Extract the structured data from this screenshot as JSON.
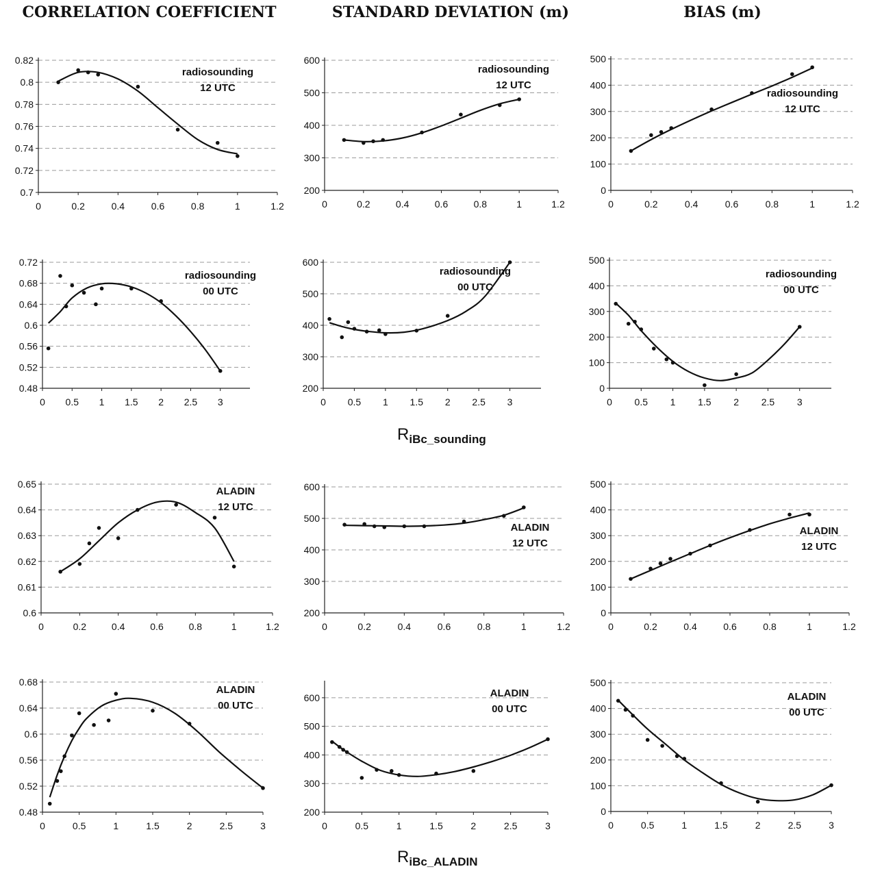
{
  "column_titles": [
    "CORRELATION COEFFICIENT",
    "STANDARD DEVIATION (m)",
    "BIAS (m)"
  ],
  "row_labels": [
    {
      "main": "R",
      "sub": "iBc_sounding"
    },
    {
      "main": "R",
      "sub": "iBc_ALADIN"
    }
  ],
  "chart_data": [
    {
      "type": "scatter",
      "ann": [
        "radiosounding",
        "12 UTC"
      ],
      "ylim": [
        0.7,
        0.82
      ],
      "yticks": [
        "0.7",
        "0.72",
        "0.74",
        "0.76",
        "0.78",
        "0.8",
        "0.82"
      ],
      "xlim": [
        0,
        1.2
      ],
      "xticks": [
        "0",
        "0.2",
        "0.4",
        "0.6",
        "0.8",
        "1",
        "1.2"
      ],
      "points": [
        [
          0.1,
          0.8
        ],
        [
          0.2,
          0.811
        ],
        [
          0.25,
          0.809
        ],
        [
          0.3,
          0.807
        ],
        [
          0.5,
          0.796
        ],
        [
          0.7,
          0.757
        ],
        [
          0.9,
          0.745
        ],
        [
          1.0,
          0.733
        ]
      ],
      "fit": [
        [
          0.1,
          0.801
        ],
        [
          0.2,
          0.809
        ],
        [
          0.3,
          0.809
        ],
        [
          0.4,
          0.803
        ],
        [
          0.5,
          0.792
        ],
        [
          0.6,
          0.777
        ],
        [
          0.7,
          0.762
        ],
        [
          0.8,
          0.748
        ],
        [
          0.9,
          0.739
        ],
        [
          1.0,
          0.735
        ]
      ]
    },
    {
      "type": "scatter",
      "ann": [
        "radiosounding",
        "12 UTC"
      ],
      "ylim": [
        200,
        600
      ],
      "yticks": [
        "200",
        "300",
        "400",
        "500",
        "600"
      ],
      "xlim": [
        0,
        1.2
      ],
      "xticks": [
        "0",
        "0.2",
        "0.4",
        "0.6",
        "0.8",
        "1",
        "1.2"
      ],
      "points": [
        [
          0.1,
          355
        ],
        [
          0.2,
          346
        ],
        [
          0.25,
          351
        ],
        [
          0.3,
          355
        ],
        [
          0.5,
          378
        ],
        [
          0.7,
          433
        ],
        [
          0.9,
          462
        ],
        [
          1.0,
          480
        ]
      ],
      "fit": [
        [
          0.1,
          355
        ],
        [
          0.2,
          350
        ],
        [
          0.3,
          352
        ],
        [
          0.4,
          361
        ],
        [
          0.5,
          377
        ],
        [
          0.6,
          398
        ],
        [
          0.7,
          422
        ],
        [
          0.8,
          446
        ],
        [
          0.9,
          466
        ],
        [
          1.0,
          480
        ]
      ]
    },
    {
      "type": "scatter",
      "ann": [
        "radiosounding",
        "12 UTC"
      ],
      "ylim": [
        0,
        500
      ],
      "yticks": [
        "0",
        "100",
        "200",
        "300",
        "400",
        "500"
      ],
      "xlim": [
        0,
        1.2
      ],
      "xticks": [
        "0",
        "0.2",
        "0.4",
        "0.6",
        "0.8",
        "1",
        "1.2"
      ],
      "points": [
        [
          0.1,
          150
        ],
        [
          0.2,
          210
        ],
        [
          0.25,
          222
        ],
        [
          0.3,
          237
        ],
        [
          0.5,
          308
        ],
        [
          0.7,
          370
        ],
        [
          0.9,
          442
        ],
        [
          1.0,
          468
        ]
      ],
      "fit": [
        [
          0.1,
          150
        ],
        [
          0.2,
          193
        ],
        [
          0.3,
          232
        ],
        [
          0.4,
          268
        ],
        [
          0.5,
          302
        ],
        [
          0.6,
          334
        ],
        [
          0.7,
          366
        ],
        [
          0.8,
          397
        ],
        [
          0.9,
          430
        ],
        [
          1.0,
          465
        ]
      ]
    },
    {
      "type": "scatter",
      "ann": [
        "radiosounding",
        "00 UTC"
      ],
      "ylim": [
        0.48,
        0.72
      ],
      "yticks": [
        "0.48",
        "0.52",
        "0.56",
        "0.6",
        "0.64",
        "0.68",
        "0.72"
      ],
      "xlim": [
        0,
        3.5
      ],
      "xticks": [
        "0",
        "0.5",
        "1",
        "1.5",
        "2",
        "2.5",
        "3"
      ],
      "points": [
        [
          0.1,
          0.556
        ],
        [
          0.3,
          0.694
        ],
        [
          0.4,
          0.636
        ],
        [
          0.5,
          0.676
        ],
        [
          0.7,
          0.662
        ],
        [
          0.9,
          0.64
        ],
        [
          1.0,
          0.67
        ],
        [
          1.5,
          0.67
        ],
        [
          2.0,
          0.646
        ],
        [
          3.0,
          0.513
        ]
      ],
      "fit": [
        [
          0.1,
          0.604
        ],
        [
          0.3,
          0.626
        ],
        [
          0.5,
          0.652
        ],
        [
          0.75,
          0.671
        ],
        [
          1.0,
          0.679
        ],
        [
          1.25,
          0.679
        ],
        [
          1.5,
          0.673
        ],
        [
          1.75,
          0.661
        ],
        [
          2.0,
          0.643
        ],
        [
          2.25,
          0.618
        ],
        [
          2.5,
          0.588
        ],
        [
          2.75,
          0.553
        ],
        [
          3.0,
          0.513
        ]
      ]
    },
    {
      "type": "scatter",
      "ann": [
        "radiosounding",
        "00 UTC"
      ],
      "ylim": [
        200,
        600
      ],
      "yticks": [
        "200",
        "300",
        "400",
        "500",
        "600"
      ],
      "xlim": [
        0,
        3.5
      ],
      "xticks": [
        "0",
        "0.5",
        "1",
        "1.5",
        "2",
        "2.5",
        "3"
      ],
      "points": [
        [
          0.1,
          420
        ],
        [
          0.3,
          362
        ],
        [
          0.4,
          410
        ],
        [
          0.5,
          389
        ],
        [
          0.7,
          380
        ],
        [
          0.9,
          384
        ],
        [
          1.0,
          372
        ],
        [
          1.5,
          383
        ],
        [
          2.0,
          430
        ],
        [
          3.0,
          600
        ]
      ],
      "fit": [
        [
          0.1,
          408
        ],
        [
          0.3,
          396
        ],
        [
          0.5,
          387
        ],
        [
          0.7,
          381
        ],
        [
          1.0,
          376
        ],
        [
          1.3,
          378
        ],
        [
          1.6,
          389
        ],
        [
          2.0,
          415
        ],
        [
          2.3,
          445
        ],
        [
          2.6,
          492
        ],
        [
          3.0,
          600
        ]
      ]
    },
    {
      "type": "scatter",
      "ann": [
        "radiosounding",
        "00 UTC"
      ],
      "ylim": [
        0,
        500
      ],
      "yticks": [
        "0",
        "100",
        "200",
        "300",
        "400",
        "500"
      ],
      "xlim": [
        0,
        3.5
      ],
      "xticks": [
        "0",
        "0.5",
        "1",
        "1.5",
        "2",
        "2.5",
        "3"
      ],
      "points": [
        [
          0.1,
          330
        ],
        [
          0.3,
          252
        ],
        [
          0.4,
          260
        ],
        [
          0.5,
          230
        ],
        [
          0.7,
          155
        ],
        [
          0.9,
          113
        ],
        [
          1.0,
          100
        ],
        [
          1.5,
          12
        ],
        [
          2.0,
          55
        ],
        [
          3.0,
          240
        ]
      ],
      "fit": [
        [
          0.1,
          332
        ],
        [
          0.3,
          285
        ],
        [
          0.5,
          225
        ],
        [
          0.75,
          160
        ],
        [
          1.0,
          105
        ],
        [
          1.25,
          65
        ],
        [
          1.5,
          40
        ],
        [
          1.75,
          30
        ],
        [
          2.0,
          40
        ],
        [
          2.25,
          60
        ],
        [
          2.5,
          110
        ],
        [
          2.75,
          170
        ],
        [
          3.0,
          240
        ]
      ]
    },
    {
      "type": "scatter",
      "ann": [
        "ALADIN",
        "12 UTC"
      ],
      "ylim": [
        0.6,
        0.65
      ],
      "yticks": [
        "0.6",
        "0.61",
        "0.62",
        "0.63",
        "0.64",
        "0.65"
      ],
      "xlim": [
        0,
        1.2
      ],
      "xticks": [
        "0",
        "0.2",
        "0.4",
        "0.6",
        "0.8",
        "1",
        "1.2"
      ],
      "points": [
        [
          0.1,
          0.616
        ],
        [
          0.2,
          0.619
        ],
        [
          0.25,
          0.627
        ],
        [
          0.3,
          0.633
        ],
        [
          0.4,
          0.629
        ],
        [
          0.5,
          0.64
        ],
        [
          0.7,
          0.642
        ],
        [
          0.9,
          0.637
        ],
        [
          1.0,
          0.618
        ]
      ],
      "fit": [
        [
          0.1,
          0.616
        ],
        [
          0.2,
          0.621
        ],
        [
          0.3,
          0.628
        ],
        [
          0.4,
          0.635
        ],
        [
          0.5,
          0.64
        ],
        [
          0.6,
          0.643
        ],
        [
          0.7,
          0.643
        ],
        [
          0.8,
          0.639
        ],
        [
          0.9,
          0.633
        ],
        [
          1.0,
          0.62
        ]
      ]
    },
    {
      "type": "scatter",
      "ann": [
        "ALADIN",
        "12 UTC"
      ],
      "ylim": [
        200,
        600
      ],
      "yticks": [
        "200",
        "300",
        "400",
        "500",
        "600"
      ],
      "xlim": [
        0,
        1.2
      ],
      "xticks": [
        "0",
        "0.2",
        "0.4",
        "0.6",
        "0.8",
        "1",
        "1.2"
      ],
      "points": [
        [
          0.1,
          480
        ],
        [
          0.2,
          482
        ],
        [
          0.25,
          475
        ],
        [
          0.3,
          472
        ],
        [
          0.4,
          475
        ],
        [
          0.5,
          475
        ],
        [
          0.7,
          490
        ],
        [
          0.9,
          508
        ],
        [
          1.0,
          535
        ]
      ],
      "fit": [
        [
          0.1,
          478
        ],
        [
          0.2,
          477
        ],
        [
          0.3,
          476
        ],
        [
          0.4,
          475
        ],
        [
          0.5,
          476
        ],
        [
          0.6,
          479
        ],
        [
          0.7,
          485
        ],
        [
          0.8,
          496
        ],
        [
          0.9,
          510
        ],
        [
          1.0,
          533
        ]
      ]
    },
    {
      "type": "scatter",
      "ann": [
        "ALADIN",
        "12 UTC"
      ],
      "ylim": [
        0,
        500
      ],
      "yticks": [
        "0",
        "100",
        "200",
        "300",
        "400",
        "500"
      ],
      "xlim": [
        0,
        1.2
      ],
      "xticks": [
        "0",
        "0.2",
        "0.4",
        "0.6",
        "0.8",
        "1",
        "1.2"
      ],
      "points": [
        [
          0.1,
          132
        ],
        [
          0.2,
          172
        ],
        [
          0.25,
          192
        ],
        [
          0.3,
          210
        ],
        [
          0.4,
          230
        ],
        [
          0.5,
          262
        ],
        [
          0.7,
          322
        ],
        [
          0.9,
          382
        ],
        [
          1.0,
          382
        ]
      ],
      "fit": [
        [
          0.1,
          132
        ],
        [
          0.2,
          165
        ],
        [
          0.3,
          198
        ],
        [
          0.4,
          230
        ],
        [
          0.5,
          262
        ],
        [
          0.6,
          292
        ],
        [
          0.7,
          320
        ],
        [
          0.8,
          346
        ],
        [
          0.9,
          368
        ],
        [
          1.0,
          388
        ]
      ]
    },
    {
      "type": "scatter",
      "ann": [
        "ALADIN",
        "00 UTC"
      ],
      "ylim": [
        0.48,
        0.68
      ],
      "yticks": [
        "0.48",
        "0.52",
        "0.56",
        "0.6",
        "0.64",
        "0.68"
      ],
      "xlim": [
        0,
        3.0
      ],
      "xticks": [
        "0",
        "0.5",
        "1",
        "1.5",
        "2",
        "2.5",
        "3"
      ],
      "points": [
        [
          0.1,
          0.493
        ],
        [
          0.2,
          0.528
        ],
        [
          0.25,
          0.543
        ],
        [
          0.3,
          0.566
        ],
        [
          0.4,
          0.598
        ],
        [
          0.5,
          0.632
        ],
        [
          0.7,
          0.614
        ],
        [
          0.9,
          0.621
        ],
        [
          1.0,
          0.662
        ],
        [
          1.5,
          0.636
        ],
        [
          2.0,
          0.616
        ],
        [
          3.0,
          0.517
        ]
      ],
      "fit": [
        [
          0.1,
          0.503
        ],
        [
          0.2,
          0.537
        ],
        [
          0.3,
          0.566
        ],
        [
          0.4,
          0.59
        ],
        [
          0.5,
          0.609
        ],
        [
          0.6,
          0.624
        ],
        [
          0.8,
          0.643
        ],
        [
          1.0,
          0.652
        ],
        [
          1.2,
          0.655
        ],
        [
          1.5,
          0.649
        ],
        [
          1.8,
          0.632
        ],
        [
          2.1,
          0.605
        ],
        [
          2.4,
          0.573
        ],
        [
          2.7,
          0.544
        ],
        [
          3.0,
          0.517
        ]
      ]
    },
    {
      "type": "scatter",
      "ann": [
        "ALADIN",
        "00 UTC"
      ],
      "ylim": [
        200,
        650
      ],
      "yticks": [
        "200",
        "300",
        "400",
        "500",
        "600"
      ],
      "xlim": [
        0,
        3.0
      ],
      "xticks": [
        "0",
        "0.5",
        "1",
        "1.5",
        "2",
        "2.5",
        "3"
      ],
      "points": [
        [
          0.1,
          445
        ],
        [
          0.2,
          428
        ],
        [
          0.25,
          418
        ],
        [
          0.3,
          410
        ],
        [
          0.5,
          320
        ],
        [
          0.7,
          348
        ],
        [
          0.9,
          344
        ],
        [
          1.0,
          330
        ],
        [
          1.5,
          335
        ],
        [
          2.0,
          344
        ],
        [
          3.0,
          455
        ]
      ],
      "fit": [
        [
          0.1,
          448
        ],
        [
          0.2,
          428
        ],
        [
          0.3,
          410
        ],
        [
          0.5,
          378
        ],
        [
          0.75,
          346
        ],
        [
          1.0,
          330
        ],
        [
          1.25,
          325
        ],
        [
          1.5,
          331
        ],
        [
          1.75,
          342
        ],
        [
          2.0,
          358
        ],
        [
          2.25,
          377
        ],
        [
          2.5,
          399
        ],
        [
          2.75,
          425
        ],
        [
          3.0,
          455
        ]
      ]
    },
    {
      "type": "scatter",
      "ann": [
        "ALADIN",
        "00 UTC"
      ],
      "ylim": [
        0,
        500
      ],
      "yticks": [
        "0",
        "100",
        "200",
        "300",
        "400",
        "500"
      ],
      "xlim": [
        0,
        3.0
      ],
      "xticks": [
        "0",
        "0.5",
        "1",
        "1.5",
        "2",
        "2.5",
        "3"
      ],
      "points": [
        [
          0.1,
          430
        ],
        [
          0.2,
          395
        ],
        [
          0.3,
          372
        ],
        [
          0.5,
          278
        ],
        [
          0.7,
          255
        ],
        [
          0.9,
          215
        ],
        [
          1.0,
          205
        ],
        [
          1.5,
          110
        ],
        [
          2.0,
          38
        ],
        [
          3.0,
          102
        ]
      ],
      "fit": [
        [
          0.1,
          432
        ],
        [
          0.3,
          375
        ],
        [
          0.5,
          320
        ],
        [
          0.75,
          260
        ],
        [
          1.0,
          200
        ],
        [
          1.25,
          150
        ],
        [
          1.5,
          105
        ],
        [
          1.75,
          72
        ],
        [
          2.0,
          50
        ],
        [
          2.25,
          42
        ],
        [
          2.5,
          45
        ],
        [
          2.75,
          65
        ],
        [
          3.0,
          102
        ]
      ]
    }
  ]
}
